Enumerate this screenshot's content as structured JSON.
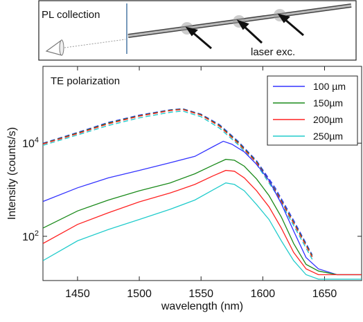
{
  "schematic": {
    "pl_collection_label": "PL collection",
    "laser_label": "laser exc."
  },
  "chart_data": {
    "type": "line",
    "title": "TE polarization",
    "xlabel": "wavelength (nm)",
    "ylabel": "Intensity (counts/s)",
    "xlim": [
      1422,
      1680
    ],
    "ylim_log10": [
      1.05,
      5.65
    ],
    "yscale": "log",
    "x_ticks": [
      1450,
      1500,
      1550,
      1600,
      1650
    ],
    "y_ticks": [
      {
        "base": "10",
        "exp": "2",
        "value": 100
      },
      {
        "base": "10",
        "exp": "4",
        "value": 10000
      }
    ],
    "legend_position": "top-right",
    "series": [
      {
        "name": "100 µm",
        "color": "#3333ff",
        "x": [
          1422,
          1450,
          1475,
          1500,
          1525,
          1545,
          1560,
          1568,
          1575,
          1585,
          1595,
          1605,
          1615,
          1625,
          1635,
          1645,
          1660,
          1680
        ],
        "y": [
          560,
          1100,
          1800,
          2600,
          3800,
          5200,
          8500,
          11000,
          9500,
          6500,
          3500,
          1600,
          500,
          130,
          35,
          20,
          15,
          15
        ]
      },
      {
        "name": "150µm",
        "color": "#1a8a1a",
        "x": [
          1422,
          1450,
          1475,
          1500,
          1525,
          1545,
          1560,
          1570,
          1577,
          1585,
          1595,
          1605,
          1615,
          1625,
          1635,
          1645,
          1660,
          1680
        ],
        "y": [
          150,
          350,
          600,
          950,
          1400,
          2200,
          3400,
          4500,
          4300,
          3200,
          1700,
          750,
          260,
          70,
          25,
          18,
          15,
          15
        ]
      },
      {
        "name": "200µm",
        "color": "#ff2222",
        "x": [
          1422,
          1450,
          1475,
          1500,
          1525,
          1545,
          1560,
          1570,
          1577,
          1585,
          1595,
          1605,
          1615,
          1625,
          1635,
          1645,
          1660,
          1680
        ],
        "y": [
          70,
          180,
          320,
          550,
          850,
          1300,
          2000,
          2600,
          2500,
          1800,
          950,
          430,
          150,
          45,
          20,
          15,
          15,
          15
        ]
      },
      {
        "name": "250µm",
        "color": "#22cccc",
        "x": [
          1422,
          1450,
          1475,
          1500,
          1525,
          1545,
          1560,
          1570,
          1577,
          1585,
          1595,
          1605,
          1615,
          1625,
          1635,
          1645,
          1660,
          1680
        ],
        "y": [
          30,
          80,
          140,
          230,
          380,
          600,
          1000,
          1400,
          1300,
          950,
          480,
          230,
          80,
          30,
          15,
          12,
          12,
          12
        ]
      }
    ],
    "dashed_series": [
      {
        "color": "#3333ff",
        "x": [
          1422,
          1450,
          1475,
          1500,
          1525,
          1535,
          1550,
          1565,
          1580,
          1595,
          1610,
          1625,
          1640
        ],
        "y": [
          10000,
          17000,
          28000,
          40000,
          52000,
          55000,
          42000,
          25000,
          11000,
          4200,
          1100,
          220,
          40
        ]
      },
      {
        "color": "#1a8a1a",
        "x": [
          1422,
          1450,
          1475,
          1500,
          1525,
          1535,
          1550,
          1565,
          1580,
          1595,
          1610,
          1625,
          1640
        ],
        "y": [
          9800,
          16500,
          27000,
          39000,
          51000,
          54000,
          41000,
          24000,
          10500,
          4000,
          1000,
          200,
          38
        ]
      },
      {
        "color": "#ff2222",
        "x": [
          1422,
          1450,
          1475,
          1500,
          1525,
          1535,
          1550,
          1565,
          1580,
          1595,
          1610,
          1625,
          1640
        ],
        "y": [
          9600,
          16000,
          26000,
          38000,
          50000,
          53000,
          40000,
          23000,
          10000,
          3800,
          950,
          190,
          36
        ]
      },
      {
        "color": "#22cccc",
        "x": [
          1422,
          1450,
          1475,
          1500,
          1525,
          1535,
          1550,
          1565,
          1580,
          1595,
          1610,
          1625,
          1640
        ],
        "y": [
          9000,
          15000,
          24000,
          35000,
          46000,
          49000,
          37000,
          21000,
          9300,
          3500,
          880,
          170,
          32
        ]
      }
    ]
  }
}
